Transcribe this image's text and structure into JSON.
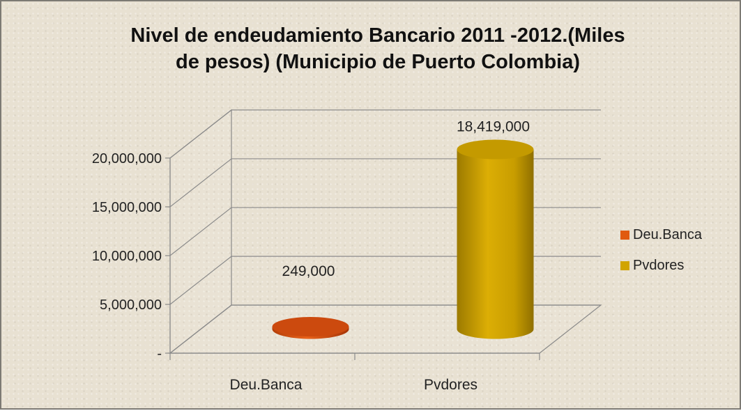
{
  "chart_data": {
    "type": "bar",
    "title_lines": [
      "Nivel de endeudamiento Bancario 2011 -2012.(Miles",
      "de pesos) (Municipio de Puerto Colombia)"
    ],
    "categories": [
      "Deu.Banca",
      "Pvdores"
    ],
    "values": [
      249000,
      18419000
    ],
    "data_labels": [
      "249,000",
      "18,419,000"
    ],
    "colors": [
      "#e05a10",
      "#d1a400"
    ],
    "legend": [
      "Deu.Banca",
      "Pvdores"
    ],
    "legend_position": "right",
    "y_ticks": [
      "-",
      "5,000,000",
      "10,000,000",
      "15,000,000",
      "20,000,000"
    ],
    "y_tick_values": [
      0,
      5000000,
      10000000,
      15000000,
      20000000
    ],
    "ylim": [
      0,
      20000000
    ],
    "grid": true,
    "style": "3d-cylinder"
  }
}
